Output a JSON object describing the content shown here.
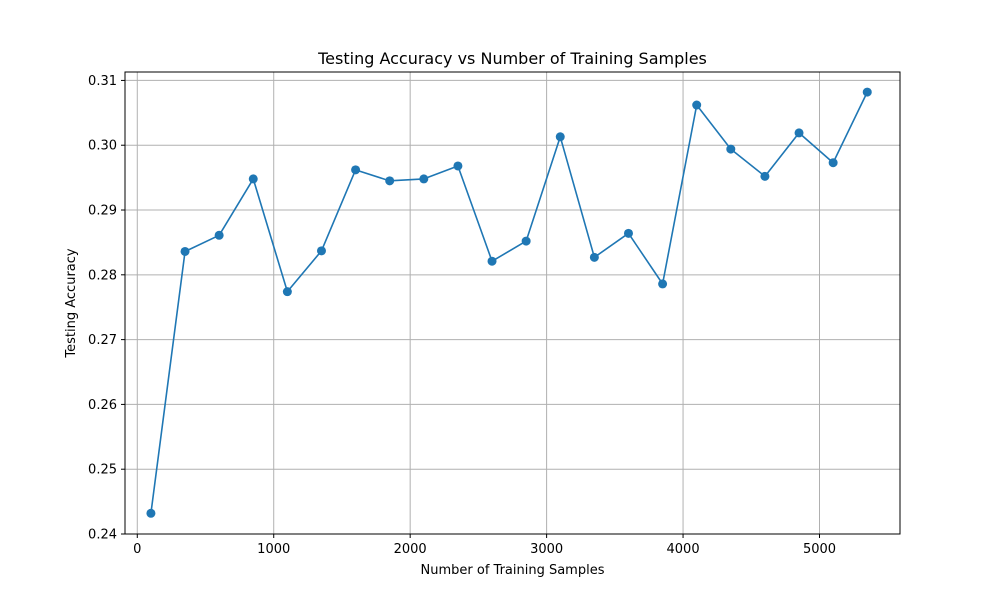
{
  "chart_data": {
    "type": "line",
    "title": "Testing Accuracy vs Number of Training Samples",
    "xlabel": "Number of Training Samples",
    "ylabel": "Testing Accuracy",
    "xlim": [
      -90,
      5590
    ],
    "ylim": [
      0.24,
      0.3113
    ],
    "xticks": [
      0,
      1000,
      2000,
      3000,
      4000,
      5000
    ],
    "xtick_labels": [
      "0",
      "1000",
      "2000",
      "3000",
      "4000",
      "5000"
    ],
    "yticks": [
      0.24,
      0.25,
      0.26,
      0.27,
      0.28,
      0.29,
      0.3,
      0.31
    ],
    "ytick_labels": [
      "0.24",
      "0.25",
      "0.26",
      "0.27",
      "0.28",
      "0.29",
      "0.30",
      "0.31"
    ],
    "grid": true,
    "marker": "circle",
    "series": [
      {
        "color": "#1f77b4",
        "x": [
          100,
          350,
          600,
          850,
          1100,
          1350,
          1600,
          1850,
          2100,
          2350,
          2600,
          2850,
          3100,
          3350,
          3600,
          3850,
          4100,
          4350,
          4600,
          4850,
          5100,
          5350
        ],
        "y": [
          0.2432,
          0.2836,
          0.2861,
          0.2948,
          0.2774,
          0.2837,
          0.2962,
          0.2945,
          0.2948,
          0.2968,
          0.2821,
          0.2852,
          0.3013,
          0.2827,
          0.2864,
          0.2786,
          0.3062,
          0.2994,
          0.2952,
          0.3019,
          0.2973,
          0.3082
        ]
      }
    ]
  }
}
